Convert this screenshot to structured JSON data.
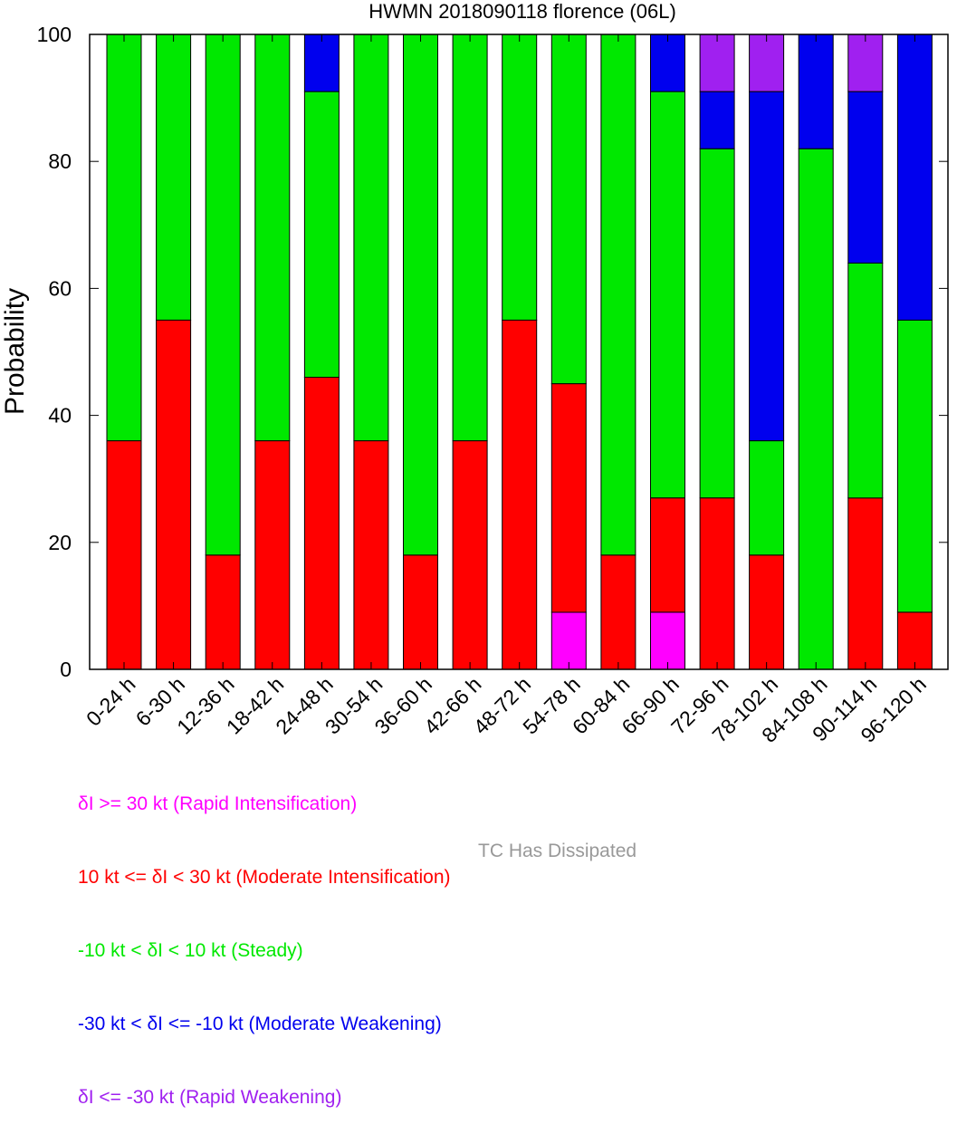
{
  "chart_data": {
    "type": "bar",
    "stacked": true,
    "title": "HWMN 2018090118 florence (06L)",
    "xlabel": "",
    "ylabel": "Probability",
    "ylim": [
      0,
      100
    ],
    "yticks": [
      "0",
      "20",
      "40",
      "60",
      "80",
      "100"
    ],
    "categories": [
      "0-24 h",
      "6-30 h",
      "12-36 h",
      "18-42 h",
      "24-48 h",
      "30-54 h",
      "36-60 h",
      "42-66 h",
      "48-72 h",
      "54-78 h",
      "60-84 h",
      "66-90 h",
      "72-96 h",
      "78-102 h",
      "84-108 h",
      "90-114 h",
      "96-120 h"
    ],
    "series": [
      {
        "name": "δI >= 30 kt (Rapid Intensification)",
        "color": "#ff00ff",
        "values": [
          0,
          0,
          0,
          0,
          0,
          0,
          0,
          0,
          0,
          9,
          0,
          9,
          0,
          0,
          0,
          0,
          0
        ]
      },
      {
        "name": "10 kt <= δI < 30 kt (Moderate Intensification)",
        "color": "#ff0000",
        "values": [
          36,
          55,
          18,
          36,
          46,
          36,
          18,
          36,
          55,
          36,
          18,
          18,
          27,
          18,
          0,
          27,
          9
        ]
      },
      {
        "name": "-10 kt < δI < 10 kt (Steady)",
        "color": "#00e800",
        "values": [
          64,
          45,
          82,
          64,
          45,
          64,
          82,
          64,
          45,
          55,
          82,
          64,
          55,
          18,
          82,
          37,
          46
        ]
      },
      {
        "name": "-30 kt < δI <= -10 kt (Moderate Weakening)",
        "color": "#0000ee",
        "values": [
          0,
          0,
          0,
          0,
          9,
          0,
          0,
          0,
          0,
          0,
          0,
          9,
          9,
          55,
          18,
          27,
          45
        ]
      },
      {
        "name": "δI <= -30 kt (Rapid Weakening)",
        "color": "#a020f0",
        "values": [
          0,
          0,
          0,
          0,
          0,
          0,
          0,
          0,
          0,
          0,
          0,
          0,
          9,
          9,
          0,
          9,
          0
        ]
      }
    ],
    "extra_legend": {
      "name": "TC Has Dissipated",
      "color": "#999999"
    },
    "grid": false,
    "legend_position": "bottom-left"
  }
}
